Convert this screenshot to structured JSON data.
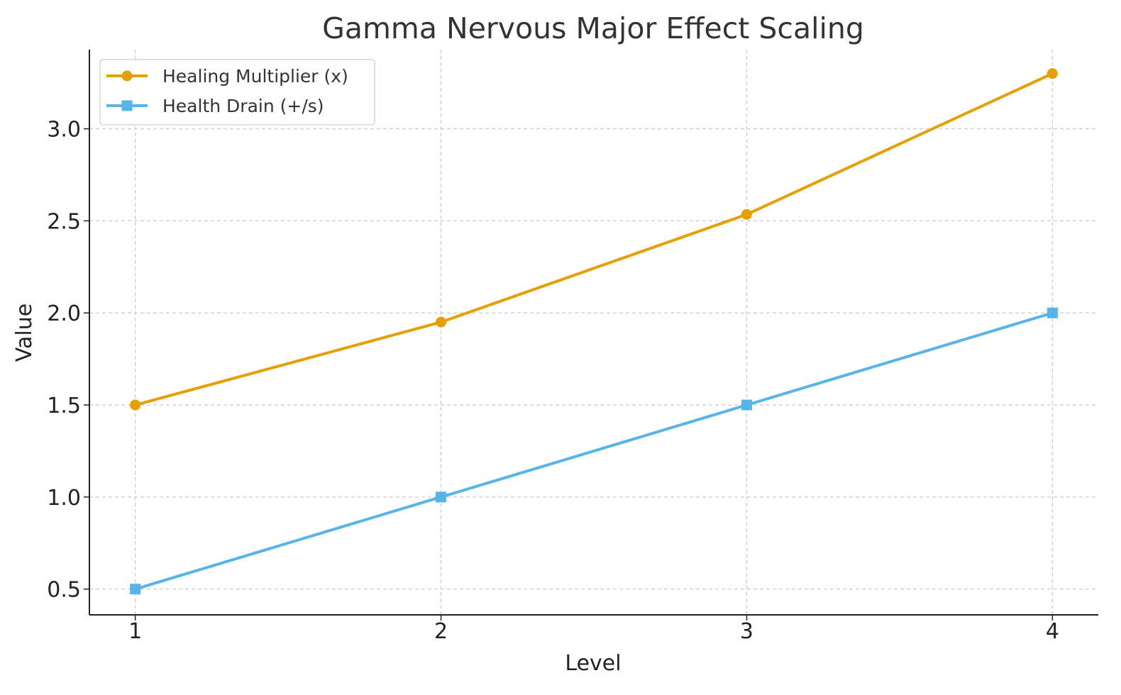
{
  "chart_data": {
    "type": "line",
    "title": "Gamma Nervous Major Effect Scaling",
    "xlabel": "Level",
    "ylabel": "Value",
    "x": [
      1,
      2,
      3,
      4
    ],
    "xticks": [
      "1",
      "2",
      "3",
      "4"
    ],
    "yticks": [
      "0.5",
      "1.0",
      "1.5",
      "2.0",
      "2.5",
      "3.0"
    ],
    "ytick_values": [
      0.5,
      1.0,
      1.5,
      2.0,
      2.5,
      3.0
    ],
    "xlim": [
      0.85,
      4.15
    ],
    "ylim": [
      0.36,
      3.43
    ],
    "grid": true,
    "legend_position": "top-left",
    "series": [
      {
        "name": "Healing Multiplier (x)",
        "values": [
          1.5,
          1.95,
          2.535,
          3.3
        ],
        "color": "#e69f00",
        "marker": "circle"
      },
      {
        "name": "Health Drain (+/s)",
        "values": [
          0.5,
          1.0,
          1.5,
          2.0
        ],
        "color": "#56b4e9",
        "marker": "square"
      }
    ]
  }
}
